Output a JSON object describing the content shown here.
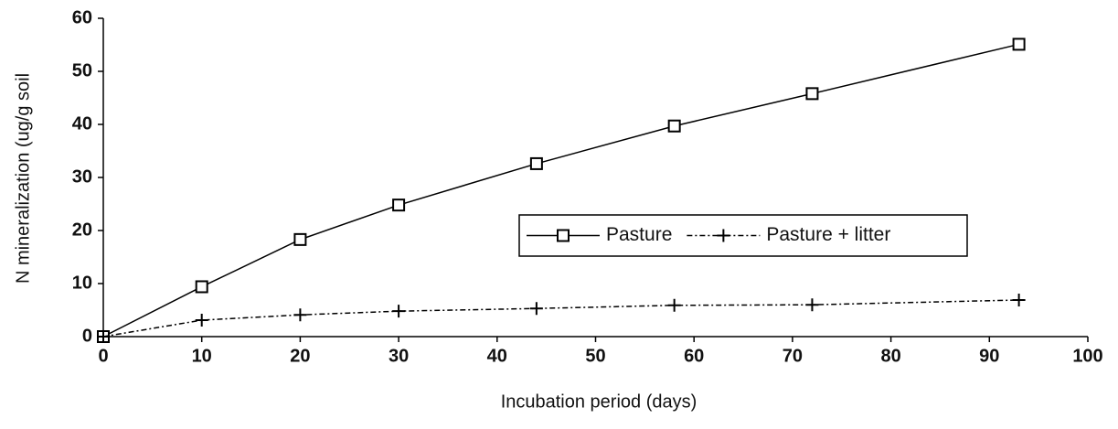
{
  "chart_data": {
    "type": "line",
    "xlabel": "Incubation period (days)",
    "ylabel": "N mineralization (ug/g soil",
    "x": [
      0,
      10,
      20,
      30,
      44,
      58,
      72,
      93
    ],
    "series": [
      {
        "name": "Pasture",
        "color": "#000000",
        "linestyle": "solid",
        "marker": "square",
        "values": [
          0,
          9.4,
          18.3,
          24.8,
          32.6,
          39.7,
          45.8,
          55.1
        ]
      },
      {
        "name": "Pasture + litter",
        "color": "#000000",
        "linestyle": "dashdot",
        "marker": "plus",
        "values": [
          0,
          3.1,
          4.1,
          4.8,
          5.3,
          5.9,
          6.0,
          6.9
        ]
      }
    ],
    "xlim": [
      0,
      100
    ],
    "xticks": [
      0,
      10,
      20,
      30,
      40,
      50,
      60,
      70,
      80,
      90,
      100
    ],
    "ylim": [
      0,
      60
    ],
    "yticks": [
      0,
      10,
      20,
      30,
      40,
      50,
      60
    ],
    "grid": false,
    "legend": "center"
  }
}
